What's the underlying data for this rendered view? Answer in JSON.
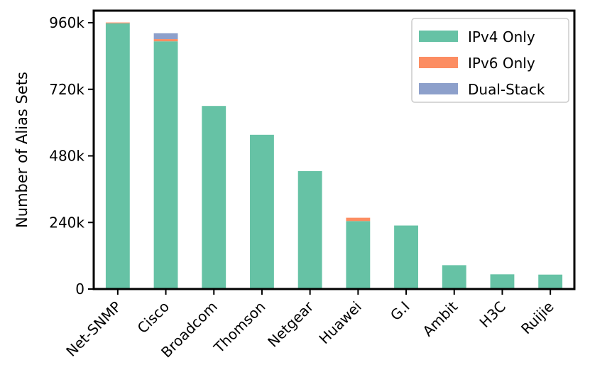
{
  "chart_data": {
    "type": "bar",
    "stacked": true,
    "categories": [
      "Net-SNMP",
      "Cisco",
      "Broadcom",
      "Thomson",
      "Netgear",
      "Huawei",
      "G.I",
      "Ambit",
      "H3C",
      "Ruijie"
    ],
    "series": [
      {
        "name": "IPv4 Only",
        "color": "#66c2a5",
        "values": [
          958000,
          893000,
          660000,
          556000,
          425000,
          245000,
          229000,
          86000,
          53000,
          52000
        ]
      },
      {
        "name": "IPv6 Only",
        "color": "#fc8d62",
        "values": [
          3000,
          8000,
          0,
          0,
          0,
          12000,
          0,
          0,
          0,
          0
        ]
      },
      {
        "name": "Dual-Stack",
        "color": "#8da0cb",
        "values": [
          0,
          21000,
          0,
          0,
          0,
          0,
          0,
          0,
          0,
          0
        ]
      }
    ],
    "title": "",
    "xlabel": "",
    "ylabel": "Number of Alias Sets",
    "ylim": [
      0,
      960000
    ],
    "yticks": [
      0,
      240000,
      480000,
      720000,
      960000
    ],
    "ytick_labels": [
      "0",
      "240k",
      "480k",
      "720k",
      "960k"
    ],
    "grid": false,
    "legend_position": "top-right"
  }
}
